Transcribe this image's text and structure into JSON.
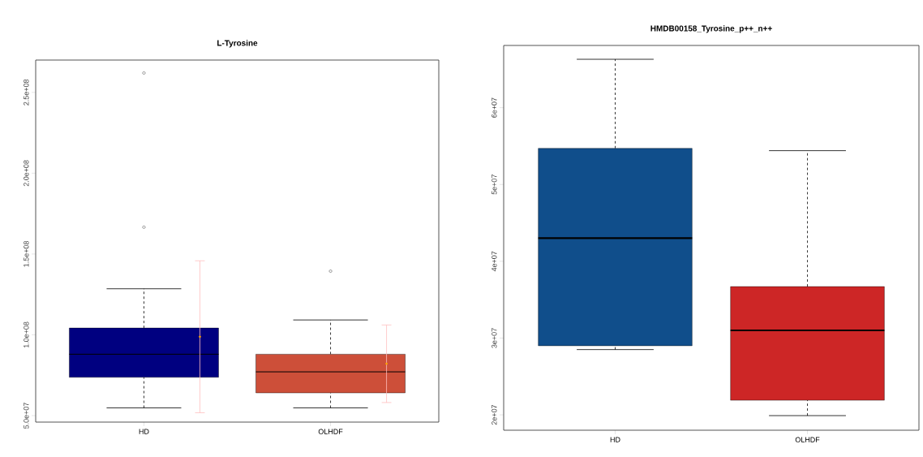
{
  "chart_data": [
    {
      "type": "box",
      "title": "L-Tyrosine",
      "categories": [
        "HD",
        "OLHDF"
      ],
      "ylim": [
        46000000,
        270000000
      ],
      "yticks": [
        {
          "value": 50000000,
          "label": "5.0e+07"
        },
        {
          "value": 100000000,
          "label": "1.0e+08"
        },
        {
          "value": 150000000,
          "label": "1.5e+08"
        },
        {
          "value": 200000000,
          "label": "2.0e+08"
        },
        {
          "value": 250000000,
          "label": "2.5e+08"
        }
      ],
      "colors": [
        "#000080",
        "#cd4f39"
      ],
      "boxes": [
        {
          "low": 54800000,
          "q1": 73700000,
          "median": 88000000,
          "q3": 104200000,
          "high": 128500000,
          "outliers": [
            166600000,
            262000000
          ]
        },
        {
          "low": 54800000,
          "q1": 64100000,
          "median": 77100000,
          "q3": 88000000,
          "high": 109200000,
          "outliers": [
            139400000
          ]
        }
      ],
      "series": [
        {
          "type": "scatter",
          "x": [
            "HD",
            "OLHDF"
          ],
          "values": [
            98800000,
            82100000
          ],
          "errors": [
            47000000,
            24000000
          ],
          "color": "#ffa500"
        }
      ]
    },
    {
      "type": "box",
      "title": "HMDB00158_Tyrosine_p++_n++",
      "categories": [
        "HD",
        "OLHDF"
      ],
      "ylim": [
        18000000,
        68100000
      ],
      "yticks": [
        {
          "value": 20000000,
          "label": "2e+07"
        },
        {
          "value": 30000000,
          "label": "3e+07"
        },
        {
          "value": 40000000,
          "label": "4e+07"
        },
        {
          "value": 50000000,
          "label": "5e+07"
        },
        {
          "value": 60000000,
          "label": "6e+07"
        }
      ],
      "colors": [
        "#104e8b",
        "#cd2626"
      ],
      "boxes": [
        {
          "low": 28500000,
          "q1": 29000000,
          "median": 43000000,
          "q3": 54700000,
          "high": 66300000
        },
        {
          "low": 19900000,
          "q1": 21900000,
          "median": 31000000,
          "q3": 36700000,
          "high": 54400000
        }
      ]
    }
  ]
}
